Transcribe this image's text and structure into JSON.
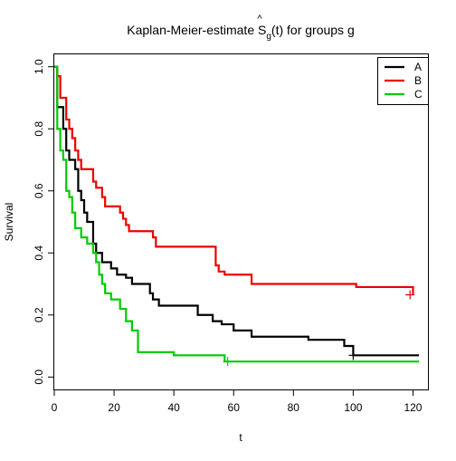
{
  "chart_data": {
    "type": "line",
    "step": true,
    "title_prefix": "Kaplan-Meier-estimate ",
    "title_symbol": "S",
    "title_hat": "^",
    "title_subscript": "g",
    "title_arg": "(t)",
    "title_suffix": " for groups g",
    "xlabel": "t",
    "ylabel": "Survival",
    "xlim": [
      0,
      125
    ],
    "ylim": [
      -0.04,
      1.04
    ],
    "xticks": [
      0,
      20,
      40,
      60,
      80,
      100,
      120
    ],
    "yticks": [
      0.0,
      0.2,
      0.4,
      0.6,
      0.8,
      1.0
    ],
    "legend_position": "top-right",
    "series": [
      {
        "name": "A",
        "color": "#000000",
        "steps": [
          [
            0,
            1.0
          ],
          [
            1,
            0.87
          ],
          [
            3,
            0.8
          ],
          [
            4,
            0.73
          ],
          [
            5,
            0.7
          ],
          [
            7,
            0.67
          ],
          [
            8,
            0.6
          ],
          [
            9,
            0.57
          ],
          [
            10,
            0.53
          ],
          [
            11,
            0.5
          ],
          [
            13,
            0.43
          ],
          [
            14,
            0.4
          ],
          [
            16,
            0.37
          ],
          [
            19,
            0.35
          ],
          [
            21,
            0.33
          ],
          [
            24,
            0.32
          ],
          [
            26,
            0.3
          ],
          [
            32,
            0.27
          ],
          [
            33,
            0.25
          ],
          [
            35,
            0.23
          ],
          [
            48,
            0.2
          ],
          [
            53,
            0.18
          ],
          [
            56,
            0.17
          ],
          [
            60,
            0.15
          ],
          [
            66,
            0.13
          ],
          [
            85,
            0.12
          ],
          [
            97,
            0.1
          ],
          [
            100,
            0.07
          ],
          [
            122,
            0.07
          ]
        ],
        "censored": [
          [
            100,
            0.07
          ]
        ]
      },
      {
        "name": "B",
        "color": "#ee0000",
        "steps": [
          [
            0,
            1.0
          ],
          [
            1,
            0.97
          ],
          [
            2,
            0.9
          ],
          [
            4,
            0.83
          ],
          [
            5,
            0.8
          ],
          [
            6,
            0.77
          ],
          [
            7,
            0.73
          ],
          [
            8,
            0.7
          ],
          [
            9,
            0.67
          ],
          [
            13,
            0.63
          ],
          [
            14,
            0.61
          ],
          [
            16,
            0.58
          ],
          [
            17,
            0.55
          ],
          [
            22,
            0.53
          ],
          [
            23,
            0.51
          ],
          [
            24,
            0.49
          ],
          [
            25,
            0.47
          ],
          [
            33,
            0.45
          ],
          [
            34,
            0.42
          ],
          [
            54,
            0.36
          ],
          [
            55,
            0.34
          ],
          [
            57,
            0.33
          ],
          [
            66,
            0.3
          ],
          [
            101,
            0.29
          ],
          [
            120,
            0.265
          ]
        ],
        "censored": [
          [
            119,
            0.265
          ]
        ]
      },
      {
        "name": "C",
        "color": "#00cc00",
        "steps": [
          [
            0,
            1.0
          ],
          [
            1,
            0.8
          ],
          [
            2,
            0.73
          ],
          [
            3,
            0.7
          ],
          [
            4,
            0.6
          ],
          [
            5,
            0.58
          ],
          [
            6,
            0.53
          ],
          [
            7,
            0.48
          ],
          [
            9,
            0.45
          ],
          [
            11,
            0.43
          ],
          [
            13,
            0.4
          ],
          [
            14,
            0.37
          ],
          [
            15,
            0.33
          ],
          [
            16,
            0.3
          ],
          [
            17,
            0.27
          ],
          [
            19,
            0.25
          ],
          [
            22,
            0.22
          ],
          [
            24,
            0.18
          ],
          [
            26,
            0.15
          ],
          [
            28,
            0.08
          ],
          [
            40,
            0.07
          ],
          [
            57,
            0.05
          ],
          [
            122,
            0.05
          ]
        ],
        "censored": [
          [
            58,
            0.05
          ]
        ]
      }
    ]
  }
}
